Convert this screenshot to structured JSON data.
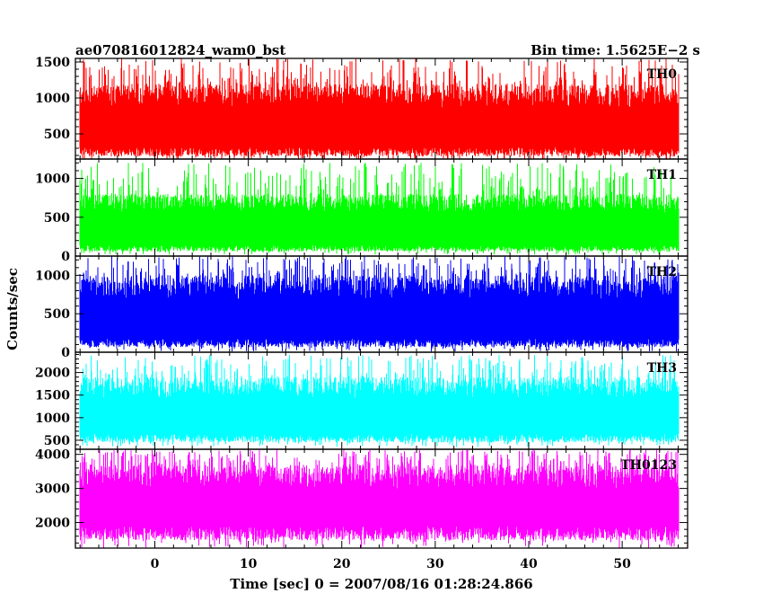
{
  "chart_data": {
    "type": "line",
    "title_left": "ae070816012824_wam0_bst",
    "title_right": "Bin time: 1.5625E−2 s",
    "xlabel": "Time [sec] 0 = 2007/08/16 01:28:24.866",
    "ylabel": "Counts/sec",
    "xlim": [
      -8.5,
      57
    ],
    "x_ticks": [
      "0",
      "10",
      "20",
      "30",
      "40",
      "50"
    ],
    "x_tick_values": [
      0,
      10,
      20,
      30,
      40,
      50
    ],
    "data_x_range": [
      -8,
      56
    ],
    "panels": [
      {
        "name": "TH0",
        "color": "#ff0000",
        "ylim": [
          150,
          1550
        ],
        "y_ticks": [
          500,
          1000,
          1500
        ],
        "y_tick_labels": [
          "500",
          "1000",
          "1500"
        ],
        "typical_range": [
          250,
          1200
        ],
        "extreme_range": [
          120,
          1550
        ]
      },
      {
        "name": "TH1",
        "color": "#00ff00",
        "ylim": [
          0,
          1250
        ],
        "y_ticks": [
          0,
          500,
          1000
        ],
        "y_tick_labels": [
          "0",
          "500",
          "1000"
        ],
        "typical_range": [
          100,
          800
        ],
        "extreme_range": [
          20,
          1200
        ]
      },
      {
        "name": "TH2",
        "color": "#0000ff",
        "ylim": [
          0,
          1250
        ],
        "y_ticks": [
          0,
          500,
          1000
        ],
        "y_tick_labels": [
          "0",
          "500",
          "1000"
        ],
        "typical_range": [
          120,
          1000
        ],
        "extreme_range": [
          10,
          1250
        ]
      },
      {
        "name": "TH3",
        "color": "#00ffff",
        "ylim": [
          300,
          2450
        ],
        "y_ticks": [
          500,
          1000,
          1500,
          2000
        ],
        "y_tick_labels": [
          "500",
          "1000",
          "1500",
          "2000"
        ],
        "typical_range": [
          550,
          1900
        ],
        "extreme_range": [
          350,
          2400
        ]
      },
      {
        "name": "TH0123",
        "color": "#ff00ff",
        "ylim": [
          1250,
          4150
        ],
        "y_ticks": [
          2000,
          3000,
          4000
        ],
        "y_tick_labels": [
          "2000",
          "3000",
          "4000"
        ],
        "typical_range": [
          1700,
          3700
        ],
        "extreme_range": [
          1250,
          4150
        ]
      }
    ]
  }
}
